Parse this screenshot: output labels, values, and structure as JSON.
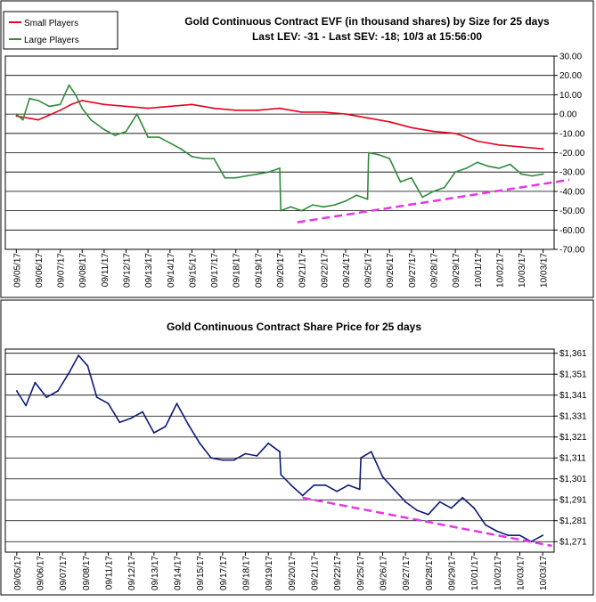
{
  "charts": [
    {
      "type": "line",
      "title": "Gold Continuous Contract EVF (in thousand shares) by Size for 25 days",
      "subtitle": "Last LEV: -31 - Last SEV: -18; 10/3 at 15:56:00",
      "xlabel": "",
      "ylabel": "",
      "ylim": [
        -70,
        30
      ],
      "y_ticks": [
        "30.00",
        "20.00",
        "10.00",
        "0.00",
        "-10.00",
        "-20.00",
        "-30.00",
        "-40.00",
        "-50.00",
        "-60.00",
        "-70.00"
      ],
      "y_tick_values": [
        30,
        20,
        10,
        0,
        -10,
        -20,
        -30,
        -40,
        -50,
        -60,
        -70
      ],
      "categories": [
        "09/05/17",
        "09/06/17",
        "09/07/17",
        "09/08/17",
        "09/11/17",
        "09/12/17",
        "09/13/17",
        "09/14/17",
        "09/15/17",
        "09/17/17",
        "09/18/17",
        "09/19/17",
        "09/20/17",
        "09/21/17",
        "09/22/17",
        "09/24/17",
        "09/25/17",
        "09/26/17",
        "09/27/17",
        "09/28/17",
        "09/29/17",
        "10/01/17",
        "10/02/17",
        "10/03/17",
        "10/03/17"
      ],
      "legend": {
        "placement": "top-left"
      },
      "grid": true,
      "series": [
        {
          "name": "Small Players",
          "color": "#e8001c",
          "x": [
            0,
            1,
            2,
            2.5,
            3,
            4,
            5,
            6,
            7,
            8,
            9,
            10,
            11,
            12,
            13,
            14,
            15,
            16,
            17,
            18,
            19,
            20,
            21,
            22,
            23,
            24
          ],
          "values": [
            -1,
            -3,
            2,
            5,
            7,
            5,
            4,
            3,
            4,
            5,
            3,
            2,
            2,
            3,
            1,
            1,
            0,
            -2,
            -4,
            -7,
            -9,
            -10,
            -14,
            -16,
            -17,
            -18
          ]
        },
        {
          "name": "Large Players",
          "color": "#2e8b3a",
          "x": [
            0,
            0.3,
            0.6,
            1,
            1.5,
            2,
            2.4,
            2.7,
            3,
            3.4,
            4,
            4.5,
            5,
            5.5,
            6,
            6.5,
            7,
            7.5,
            8,
            8.5,
            9,
            9.5,
            10,
            10.5,
            11,
            11.5,
            12,
            12.05,
            12.5,
            13,
            13.5,
            14,
            14.5,
            15,
            15.5,
            16,
            16.05,
            16.5,
            17,
            17.5,
            18,
            18.5,
            19,
            19.5,
            20,
            20.5,
            21,
            21.5,
            22,
            22.5,
            23,
            23.5,
            24
          ],
          "values": [
            0,
            -3,
            8,
            7,
            4,
            5,
            15,
            10,
            3,
            -3,
            -8,
            -11,
            -9,
            0,
            -12,
            -12,
            -15,
            -18,
            -22,
            -23,
            -23,
            -33,
            -33,
            -32,
            -31,
            -30,
            -28,
            -50,
            -48,
            -50,
            -47,
            -48,
            -47,
            -45,
            -42,
            -44,
            -20,
            -21,
            -23,
            -35,
            -33,
            -43,
            -40,
            -38,
            -30,
            -28,
            -25,
            -27,
            -28,
            -26,
            -31,
            -32,
            -31
          ]
        }
      ],
      "annotations": [
        {
          "type": "trendline",
          "style": "dashed",
          "color": "#e536e5",
          "x": [
            12.8,
            25.2
          ],
          "values": [
            -56,
            -34
          ]
        }
      ]
    },
    {
      "type": "line",
      "title": "Gold Continuous Contract Share Price for 25 days",
      "xlabel": "",
      "ylabel": "",
      "ylim": [
        1266,
        1363
      ],
      "y_ticks": [
        "$1,361",
        "$1,351",
        "$1,341",
        "$1,331",
        "$1,321",
        "$1,311",
        "$1,301",
        "$1,291",
        "$1,281",
        "$1,271"
      ],
      "y_tick_values": [
        1361,
        1351,
        1341,
        1331,
        1321,
        1311,
        1301,
        1291,
        1281,
        1271
      ],
      "categories": [
        "09/05/17",
        "09/06/17",
        "09/07/17",
        "09/08/17",
        "09/11/17",
        "09/12/17",
        "09/13/17",
        "09/14/17",
        "09/15/17",
        "09/17/17",
        "09/18/17",
        "09/19/17",
        "09/20/17",
        "09/21/17",
        "09/22/17",
        "09/25/17",
        "09/26/17",
        "09/27/17",
        "09/28/17",
        "09/29/17",
        "10/01/17",
        "10/02/17",
        "10/03/17",
        "10/03/17"
      ],
      "grid": true,
      "series": [
        {
          "name": "",
          "color": "#0b1a7a",
          "x": [
            0,
            0.4,
            0.8,
            1.3,
            1.8,
            2.3,
            2.7,
            3.1,
            3.5,
            4,
            4.5,
            5,
            5.5,
            6,
            6.5,
            7,
            7.5,
            8,
            8.5,
            9,
            9.5,
            10,
            10.5,
            11,
            11.5,
            11.55,
            12,
            12.5,
            13,
            13.5,
            14,
            14.5,
            15,
            15.05,
            15.5,
            16,
            16.5,
            17,
            17.5,
            18,
            18.5,
            19,
            19.5,
            20,
            20.5,
            21,
            21.5,
            22,
            22.5,
            23
          ],
          "values": [
            1343,
            1336,
            1347,
            1340,
            1343,
            1352,
            1360,
            1355,
            1340,
            1337,
            1328,
            1330,
            1333,
            1323,
            1326,
            1337,
            1327,
            1318,
            1311,
            1310,
            1310,
            1313,
            1312,
            1318,
            1314,
            1303,
            1298,
            1293,
            1298,
            1298,
            1295,
            1298,
            1296,
            1311,
            1314,
            1302,
            1296,
            1290,
            1286,
            1284,
            1290,
            1287,
            1292,
            1287,
            1279,
            1276,
            1274,
            1274,
            1271,
            1274
          ]
        }
      ],
      "annotations": [
        {
          "type": "trendline",
          "style": "dashed",
          "color": "#e536e5",
          "x": [
            12.5,
            23.4
          ],
          "values": [
            1292,
            1269
          ]
        }
      ]
    }
  ]
}
